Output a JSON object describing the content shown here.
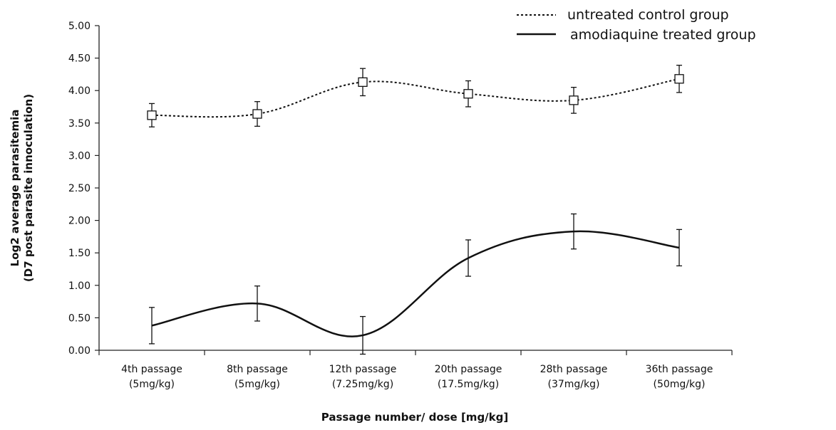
{
  "chart_data": {
    "type": "line",
    "title": "",
    "xlabel": "Passage number/ dose [mg/kg]",
    "ylabel_line1": "Log2 average parasitemia",
    "ylabel_line2": "(D7 post parasite innoculation)",
    "ylim": [
      0,
      5
    ],
    "yticks": [
      "0.00",
      "0.50",
      "1.00",
      "1.50",
      "2.00",
      "2.50",
      "3.00",
      "3.50",
      "4.00",
      "4.50",
      "5.00"
    ],
    "categories": [
      [
        "4th passage",
        "(5mg/kg)"
      ],
      [
        "8th passage",
        "(5mg/kg)"
      ],
      [
        "12th passage",
        "(7.25mg/kg)"
      ],
      [
        "20th passage",
        "(17.5mg/kg)"
      ],
      [
        "28th passage",
        "(37mg/kg)"
      ],
      [
        "36th passage",
        "(50mg/kg)"
      ]
    ],
    "legend_position": "top-right",
    "grid": false,
    "series": [
      {
        "name": "untreated control group",
        "style": "dotted",
        "marker": "square",
        "values": [
          3.62,
          3.64,
          4.13,
          3.95,
          3.85,
          4.18
        ],
        "error": [
          0.18,
          0.19,
          0.21,
          0.2,
          0.2,
          0.21
        ]
      },
      {
        "name": "amodiaquine treated group",
        "style": "solid",
        "marker": "none",
        "values": [
          0.38,
          0.72,
          0.23,
          1.42,
          1.83,
          1.58
        ],
        "error": [
          0.28,
          0.27,
          0.29,
          0.28,
          0.27,
          0.28
        ]
      }
    ]
  }
}
